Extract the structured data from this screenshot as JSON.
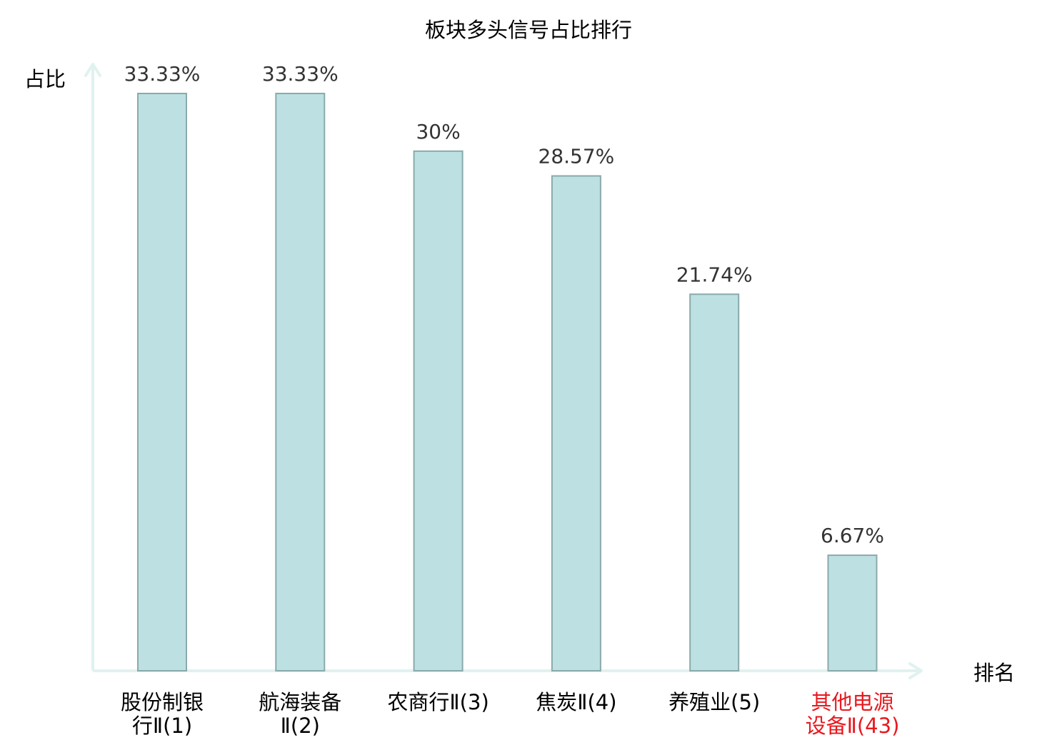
{
  "chart_data": {
    "type": "bar",
    "title": "板块多头信号占比排行",
    "xlabel": "排名",
    "ylabel": "占比",
    "categories": [
      [
        "股份制银",
        "行Ⅱ(1)"
      ],
      [
        "航海装备",
        "Ⅱ(2)"
      ],
      [
        "农商行Ⅱ(3)"
      ],
      [
        "焦炭Ⅱ(4)"
      ],
      [
        "养殖业(5)"
      ],
      [
        "其他电源",
        "设备Ⅱ(43)"
      ]
    ],
    "values": [
      33.33,
      33.33,
      30,
      28.57,
      21.74,
      6.67
    ],
    "value_labels": [
      "33.33%",
      "33.33%",
      "30%",
      "28.57%",
      "21.74%",
      "6.67%"
    ],
    "highlight_index": 5,
    "ylim": [
      0,
      33.33
    ],
    "grid": false,
    "legend": "none"
  },
  "colors": {
    "bar_fill": "#bde0e2",
    "bar_stroke": "#8aaaab",
    "axis": "#e0f2ef",
    "text": "#333333",
    "label_text": "#000000",
    "highlight": "#e8191f"
  }
}
